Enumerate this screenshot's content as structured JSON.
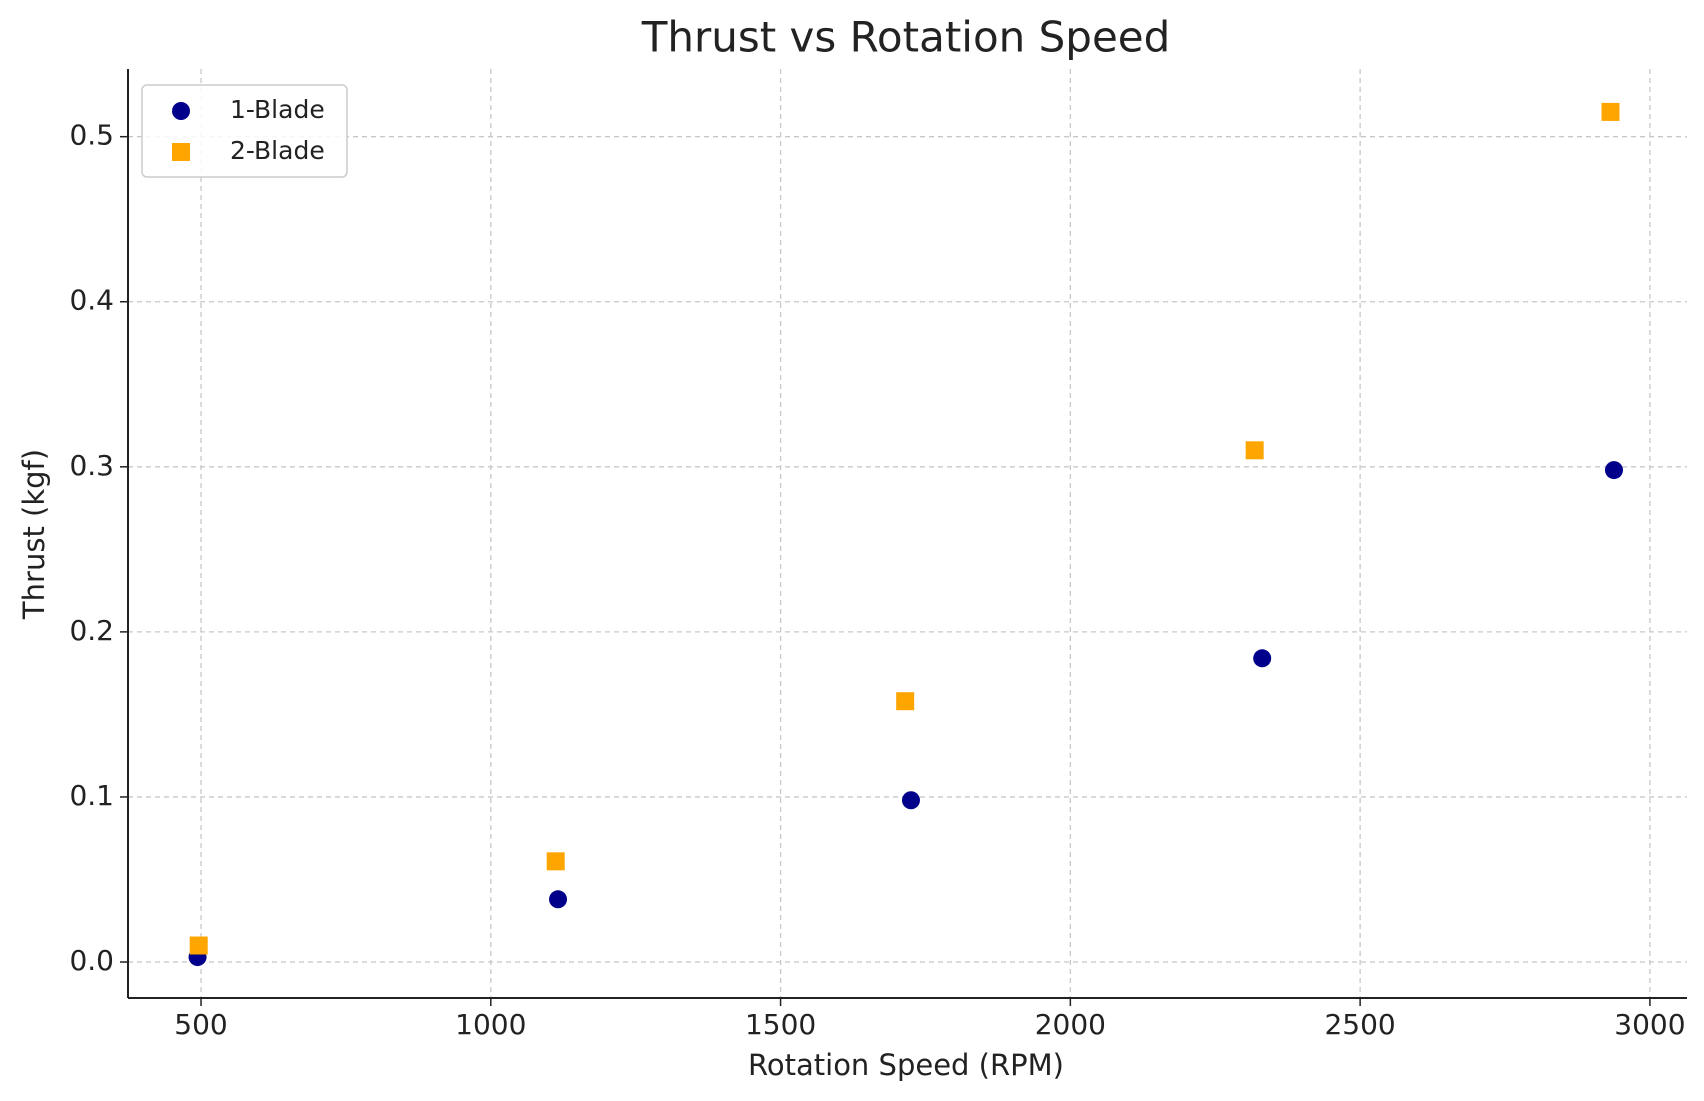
{
  "chart_data": {
    "type": "scatter",
    "title": "Thrust vs Rotation Speed",
    "x_label": "Rotation Speed (RPM)",
    "y_label": "Thrust (kgf)",
    "xlim": [
      374,
      3064
    ],
    "ylim": [
      -0.0218,
      0.541
    ],
    "xticks": [
      500,
      1000,
      1500,
      2000,
      2500,
      3000
    ],
    "yticks": [
      {
        "value": 0,
        "label": "0.0"
      },
      0.1,
      0.2,
      0.3,
      0.4,
      0.5
    ],
    "grid": true,
    "legend": "upper left",
    "series": [
      {
        "name": "1-Blade",
        "color": "#00008b",
        "marker": "circle",
        "x": [
          494,
          1116,
          1725,
          2331,
          2938
        ],
        "values": [
          0.003,
          0.038,
          0.098,
          0.184,
          0.298
        ]
      },
      {
        "name": "2-Blade",
        "color": "#ffa500",
        "marker": "square",
        "x": [
          496,
          1112,
          1715,
          2318,
          2932
        ],
        "values": [
          0.01,
          0.061,
          0.158,
          0.31,
          0.515
        ]
      }
    ]
  }
}
